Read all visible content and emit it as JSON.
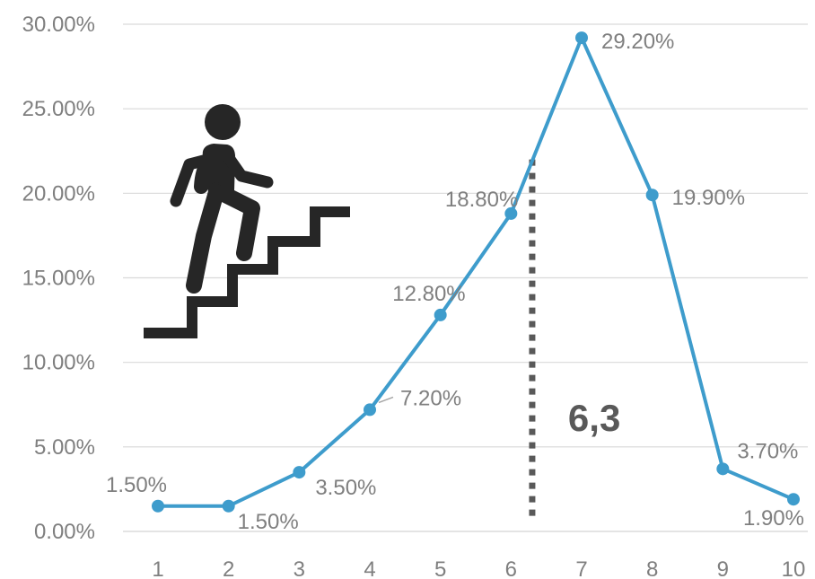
{
  "chart_data": {
    "type": "line",
    "x": [
      1,
      2,
      3,
      4,
      5,
      6,
      7,
      8,
      9,
      10
    ],
    "series": [
      {
        "values": [
          1.5,
          1.5,
          3.5,
          7.2,
          12.8,
          18.8,
          29.2,
          19.9,
          3.7,
          1.9
        ],
        "labels": [
          "1.50%",
          "1.50%",
          "3.50%",
          "7.20%",
          "12.80%",
          "18.80%",
          "29.20%",
          "19.90%",
          "3.70%",
          "1.90%"
        ],
        "color": "#3e9ccc"
      }
    ],
    "ylim": [
      0,
      30
    ],
    "yticks": [
      "0.00%",
      "5.00%",
      "10.00%",
      "15.00%",
      "20.00%",
      "25.00%",
      "30.00%"
    ],
    "xticks": [
      "1",
      "2",
      "3",
      "4",
      "5",
      "6",
      "7",
      "8",
      "9",
      "10"
    ],
    "grid": true,
    "annotation": {
      "text": "6,3",
      "x": 6.3,
      "line_top": 22.0,
      "line_bottom": 0.8,
      "color": "#595959"
    },
    "icon": "person-climbing-stairs-icon",
    "colors": {
      "line": "#3e9ccc",
      "grid": "#d9d9d9",
      "text": "#7f7f7f",
      "icon": "#262626"
    }
  }
}
